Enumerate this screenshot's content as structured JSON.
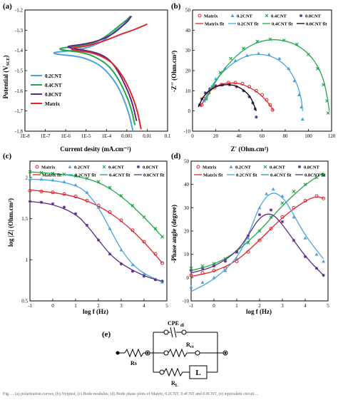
{
  "colors": {
    "blue": "#4aa3df",
    "green": "#22a84a",
    "purple": "#5b2a86",
    "red": "#e3242b",
    "black": "#000000"
  },
  "panels": {
    "a": {
      "label": "(a)",
      "xlabel": "Current desity (mA.cm⁻²)",
      "ylabel": "Potential (V",
      "ylabel_sub": "SCE",
      "ylabel_end": ")"
    },
    "b": {
      "label": "(b)",
      "xlabel": "Z' (Ohm.cm²)",
      "ylabel": "-Z'' (Ohm.cm²)"
    },
    "c": {
      "label": "(c)",
      "xlabel": "log f (Hz)",
      "ylabel": "log |Z| (Ohm.cm²)"
    },
    "d": {
      "label": "(d)",
      "xlabel": "log f (Hz)",
      "ylabel": "-Phase angle (degree)"
    },
    "e": {
      "label": "(e)"
    }
  },
  "circuit": {
    "cpe": "CPE",
    "cpe_sub": "dl",
    "rct": "R",
    "rct_sub": "ct",
    "rs": "Rs",
    "rl": "R",
    "rl_sub": "L",
    "l": "L"
  },
  "caption": "Fig. ... (a) polarization curves, (b) Nyquist, (c) Bode modulus, (d) Bode phase plots of Matrix, 0.2CNT, 0.4CNT and 0.8CNT, (e) equivalent circuit ...",
  "chart_data": [
    {
      "id": "a",
      "type": "line",
      "xlabel": "Current desity (mA.cm⁻²)",
      "ylabel": "Potential (VSCE)",
      "xscale": "log",
      "xlim": [
        1e-08,
        0.1
      ],
      "ylim": [
        -1.8,
        -1.2
      ],
      "xticks": [
        "1E-8",
        "1E-7",
        "1E-6",
        "1E-5",
        "1E-4",
        "0.001",
        "0.01",
        "0.1"
      ],
      "yticks": [
        -1.2,
        -1.3,
        -1.4,
        -1.5,
        -1.6,
        -1.7,
        -1.8
      ],
      "legend": [
        "0.2CNT",
        "0.4CNT",
        "0.8CNT",
        "Matrix"
      ],
      "legend_position": "bottom-left",
      "series": [
        {
          "name": "0.2CNT",
          "color": "blue",
          "x": [
            0.002,
            0.0012,
            0.0004,
            0.0001,
            3e-05,
            5e-06,
            4e-07,
            2e-07,
            3e-06,
            2e-05,
            8e-05,
            0.0003,
            0.0008,
            0.0013
          ],
          "y": [
            -1.8,
            -1.7,
            -1.58,
            -1.5,
            -1.46,
            -1.43,
            -1.42,
            -1.41,
            -1.4,
            -1.38,
            -1.35,
            -1.3,
            -1.27,
            -1.25
          ]
        },
        {
          "name": "0.4CNT",
          "color": "green",
          "x": [
            0.0025,
            0.0015,
            0.0005,
            0.00015,
            4e-05,
            8e-06,
            8e-07,
            4e-07,
            4e-06,
            3e-05,
            0.0001,
            0.0004,
            0.001,
            0.0015
          ],
          "y": [
            -1.77,
            -1.67,
            -1.56,
            -1.48,
            -1.44,
            -1.41,
            -1.4,
            -1.39,
            -1.38,
            -1.36,
            -1.33,
            -1.28,
            -1.25,
            -1.23
          ]
        },
        {
          "name": "0.8CNT",
          "color": "purple",
          "x": [
            0.003,
            0.0018,
            0.0006,
            0.0002,
            6e-05,
            1e-05,
            2e-06,
            1e-06,
            8e-06,
            5e-05,
            0.0002,
            0.0006,
            0.0012,
            0.0017
          ],
          "y": [
            -1.75,
            -1.65,
            -1.54,
            -1.46,
            -1.42,
            -1.4,
            -1.39,
            -1.38,
            -1.37,
            -1.35,
            -1.32,
            -1.28,
            -1.25,
            -1.23
          ]
        },
        {
          "name": "Matrix",
          "color": "red",
          "x": [
            0.005,
            0.003,
            0.001,
            0.0003,
            0.0001,
            2e-05,
            3e-06,
            1.5e-06,
            1e-05,
            0.0001,
            0.0005,
            0.002,
            0.006,
            0.01
          ],
          "y": [
            -1.79,
            -1.68,
            -1.56,
            -1.48,
            -1.44,
            -1.41,
            -1.4,
            -1.39,
            -1.38,
            -1.35,
            -1.32,
            -1.3,
            -1.28,
            -1.27
          ]
        }
      ]
    },
    {
      "id": "b",
      "type": "scatter",
      "xlabel": "Z' (Ohm.cm²)",
      "ylabel": "-Z'' (Ohm.cm²)",
      "xlim": [
        0,
        120
      ],
      "ylim": [
        -10,
        50
      ],
      "xticks": [
        0,
        20,
        40,
        60,
        80,
        100,
        120
      ],
      "yticks": [
        -10,
        0,
        10,
        20,
        30,
        40,
        50
      ],
      "legend": [
        "Matrix",
        "0.2CNT",
        "0.4CNT",
        "0.8CNT",
        "Matrix fit",
        "0.2CNT fit",
        "0.4CNT fit",
        "0.8CNT fit"
      ],
      "legend_position": "top",
      "series": [
        {
          "name": "Matrix",
          "color": "red",
          "marker": "circle",
          "x": [
            8,
            10,
            14,
            19,
            25,
            31,
            37,
            43,
            49,
            55,
            60,
            64,
            67,
            69
          ],
          "y": [
            3,
            6,
            9,
            11.5,
            13,
            14,
            14,
            13.5,
            12,
            10,
            8,
            5.5,
            3,
            0.5
          ]
        },
        {
          "name": "0.2CNT",
          "color": "blue",
          "marker": "triangle",
          "x": [
            10,
            14,
            20,
            28,
            37,
            47,
            57,
            66,
            75,
            83,
            88,
            92,
            94,
            95
          ],
          "y": [
            5,
            10,
            16,
            21,
            25,
            27.5,
            28.5,
            28,
            26,
            21,
            15,
            8,
            2,
            -4
          ]
        },
        {
          "name": "0.4CNT",
          "color": "green",
          "marker": "x",
          "x": [
            12,
            17,
            24,
            33,
            44,
            56,
            67,
            79,
            90,
            100,
            108,
            113,
            116,
            117
          ],
          "y": [
            6,
            12,
            19,
            26,
            31,
            34.5,
            35.5,
            35,
            33,
            28,
            21,
            13,
            5,
            -1
          ]
        },
        {
          "name": "0.8CNT",
          "color": "purple",
          "marker": "star",
          "x": [
            6,
            8,
            11,
            15,
            20,
            26,
            32,
            38,
            44,
            49,
            52,
            54,
            55
          ],
          "y": [
            3,
            6,
            9,
            11,
            12.5,
            13,
            13,
            12,
            10,
            7,
            4,
            1,
            -3
          ]
        },
        {
          "name": "Matrix fit",
          "color": "red",
          "x": [
            7,
            12,
            20,
            30,
            40,
            50,
            58,
            64,
            68,
            70
          ],
          "y": [
            2,
            8,
            12.5,
            14,
            13.8,
            11.5,
            8.5,
            5,
            2,
            0
          ]
        },
        {
          "name": "0.2CNT fit",
          "color": "blue",
          "x": [
            9,
            15,
            25,
            40,
            55,
            70,
            82,
            90,
            94,
            95
          ],
          "y": [
            4,
            11,
            19,
            26,
            28.5,
            27,
            22,
            14,
            6,
            0
          ]
        },
        {
          "name": "0.4CNT fit",
          "color": "green",
          "x": [
            11,
            18,
            30,
            45,
            60,
            75,
            90,
            103,
            112,
            116,
            118
          ],
          "y": [
            5,
            13,
            23,
            31,
            35,
            35.5,
            33,
            27,
            18,
            8,
            0
          ]
        },
        {
          "name": "0.8CNT fit",
          "color": "black",
          "x": [
            5,
            9,
            15,
            22,
            30,
            38,
            45,
            50,
            53,
            55
          ],
          "y": [
            2,
            7,
            10.5,
            12.5,
            13.2,
            12.5,
            10,
            7,
            3,
            0
          ]
        }
      ]
    },
    {
      "id": "c",
      "type": "line",
      "xlabel": "log f (Hz)",
      "ylabel": "log |Z| (Ohm.cm²)",
      "xlim": [
        -1,
        5
      ],
      "ylim": [
        0.5,
        2.2
      ],
      "xticks": [
        -1,
        0,
        1,
        2,
        3,
        4,
        5
      ],
      "yticks": [
        0.5,
        1,
        1.5,
        2
      ],
      "legend": [
        "Matrix",
        "0.2CNT",
        "0.4CNT",
        "0.8CNT",
        "Matrix fit",
        "0.2CNT fit",
        "0.4CNT fit",
        "0.8CNT fit"
      ],
      "legend_position": "top",
      "series": [
        {
          "name": "Matrix",
          "color": "red",
          "marker": "circle",
          "x": [
            -1,
            -0.5,
            0,
            0.5,
            1,
            1.5,
            2,
            2.5,
            3,
            3.5,
            4,
            4.5,
            4.8
          ],
          "y": [
            1.84,
            1.83,
            1.82,
            1.8,
            1.77,
            1.72,
            1.66,
            1.58,
            1.48,
            1.36,
            1.22,
            1.07,
            0.96
          ]
        },
        {
          "name": "0.2CNT",
          "color": "blue",
          "marker": "triangle",
          "x": [
            -1,
            -0.5,
            0,
            0.5,
            1,
            1.5,
            2,
            2.5,
            3,
            3.5,
            4,
            4.5,
            4.8
          ],
          "y": [
            1.98,
            1.98,
            1.97,
            1.95,
            1.91,
            1.82,
            1.64,
            1.38,
            1.12,
            0.94,
            0.83,
            0.76,
            0.73
          ]
        },
        {
          "name": "0.4CNT",
          "color": "green",
          "marker": "x",
          "x": [
            -1,
            -0.5,
            0,
            0.5,
            1,
            1.5,
            2,
            2.5,
            3,
            3.5,
            4,
            4.5,
            4.8
          ],
          "y": [
            2.07,
            2.06,
            2.05,
            2.04,
            2.02,
            1.99,
            1.95,
            1.88,
            1.78,
            1.66,
            1.52,
            1.38,
            1.28
          ]
        },
        {
          "name": "0.8CNT",
          "color": "purple",
          "marker": "star",
          "x": [
            -1,
            -0.5,
            0,
            0.5,
            1,
            1.5,
            2,
            2.5,
            3,
            3.5,
            4,
            4.5,
            4.8
          ],
          "y": [
            1.71,
            1.7,
            1.68,
            1.64,
            1.56,
            1.42,
            1.24,
            1.07,
            0.95,
            0.86,
            0.8,
            0.76,
            0.74
          ]
        },
        {
          "name": "Matrix fit",
          "color": "red",
          "x": [
            -1,
            0,
            1,
            2,
            3,
            4,
            4.8
          ],
          "y": [
            1.85,
            1.82,
            1.77,
            1.66,
            1.48,
            1.22,
            0.96
          ]
        },
        {
          "name": "0.2CNT fit",
          "color": "blue",
          "x": [
            -1,
            0,
            1,
            1.5,
            2,
            2.5,
            3,
            3.5,
            4,
            4.8
          ],
          "y": [
            1.98,
            1.97,
            1.91,
            1.82,
            1.64,
            1.38,
            1.12,
            0.94,
            0.83,
            0.73
          ]
        },
        {
          "name": "0.4CNT fit",
          "color": "green",
          "x": [
            -1,
            0,
            1,
            2,
            3,
            4,
            4.8
          ],
          "y": [
            2.07,
            2.05,
            2.02,
            1.95,
            1.78,
            1.52,
            1.28
          ]
        },
        {
          "name": "0.8CNT fit",
          "color": "purple",
          "x": [
            -1,
            0,
            1,
            1.5,
            2,
            2.5,
            3,
            4,
            4.8
          ],
          "y": [
            1.71,
            1.68,
            1.56,
            1.42,
            1.24,
            1.07,
            0.95,
            0.8,
            0.74
          ]
        }
      ]
    },
    {
      "id": "d",
      "type": "line",
      "xlabel": "log f (Hz)",
      "ylabel": "-Phase angle (degree)",
      "xlim": [
        -1,
        5
      ],
      "ylim": [
        -10,
        50
      ],
      "xticks": [
        -1,
        0,
        1,
        2,
        3,
        4,
        5
      ],
      "yticks": [
        -10,
        0,
        10,
        20,
        30,
        40,
        50
      ],
      "legend": [
        "Matrix",
        "0.2CNT",
        "0.4CNT",
        "0.8CNT",
        "Matrix fit",
        "0.2CNT fit",
        "0.4CNT fit",
        "0.8CNT fit"
      ],
      "legend_position": "top",
      "series": [
        {
          "name": "Matrix",
          "color": "red",
          "marker": "circle",
          "x": [
            -1,
            -0.5,
            0,
            0.5,
            1,
            1.5,
            2,
            2.5,
            3,
            3.5,
            4,
            4.5,
            4.8
          ],
          "y": [
            1,
            2,
            3,
            4,
            7,
            11,
            16,
            21,
            26,
            30,
            33,
            35,
            34
          ]
        },
        {
          "name": "0.2CNT",
          "color": "blue",
          "marker": "triangle",
          "x": [
            -1,
            -0.5,
            0,
            0.5,
            1,
            1.5,
            2,
            2.3,
            2.6,
            3,
            3.5,
            4,
            4.5,
            4.8
          ],
          "y": [
            -4,
            -2,
            0,
            3,
            8,
            17,
            30,
            36,
            38,
            35,
            26,
            17,
            10,
            7
          ]
        },
        {
          "name": "0.4CNT",
          "color": "green",
          "marker": "x",
          "x": [
            -1,
            -0.5,
            0,
            0.5,
            1,
            1.5,
            2,
            2.5,
            3,
            3.5,
            4,
            4.5,
            4.8
          ],
          "y": [
            4,
            5,
            6,
            8,
            11,
            15,
            20,
            26,
            32,
            37,
            40,
            43,
            44
          ]
        },
        {
          "name": "0.8CNT",
          "color": "purple",
          "marker": "star",
          "x": [
            -1,
            -0.5,
            0,
            0.5,
            1,
            1.5,
            2,
            2.5,
            3,
            3.5,
            4,
            4.5,
            4.8
          ],
          "y": [
            3,
            4,
            5,
            7,
            11,
            18,
            27,
            29,
            24,
            16,
            9,
            4,
            1
          ]
        },
        {
          "name": "Matrix fit",
          "color": "red",
          "x": [
            -1,
            0,
            1,
            2,
            3,
            4,
            4.5,
            4.8
          ],
          "y": [
            0.5,
            2.5,
            7,
            16,
            26,
            33,
            35,
            34
          ]
        },
        {
          "name": "0.2CNT fit",
          "color": "blue",
          "x": [
            -1,
            0,
            1,
            1.5,
            2,
            2.5,
            3,
            3.5,
            4,
            4.8
          ],
          "y": [
            -6,
            -1,
            8,
            18,
            31,
            37,
            35,
            27,
            18,
            8
          ]
        },
        {
          "name": "0.4CNT fit",
          "color": "green",
          "x": [
            -1,
            0,
            1,
            2,
            3,
            4,
            4.8
          ],
          "y": [
            3,
            5.5,
            11,
            20,
            31,
            40,
            45
          ]
        },
        {
          "name": "0.8CNT fit",
          "color": "purple",
          "x": [
            -1,
            0,
            1,
            1.5,
            2,
            2.5,
            3,
            4,
            4.8
          ],
          "y": [
            2,
            4.5,
            11,
            18,
            26,
            28,
            23,
            9,
            1
          ]
        }
      ]
    }
  ]
}
